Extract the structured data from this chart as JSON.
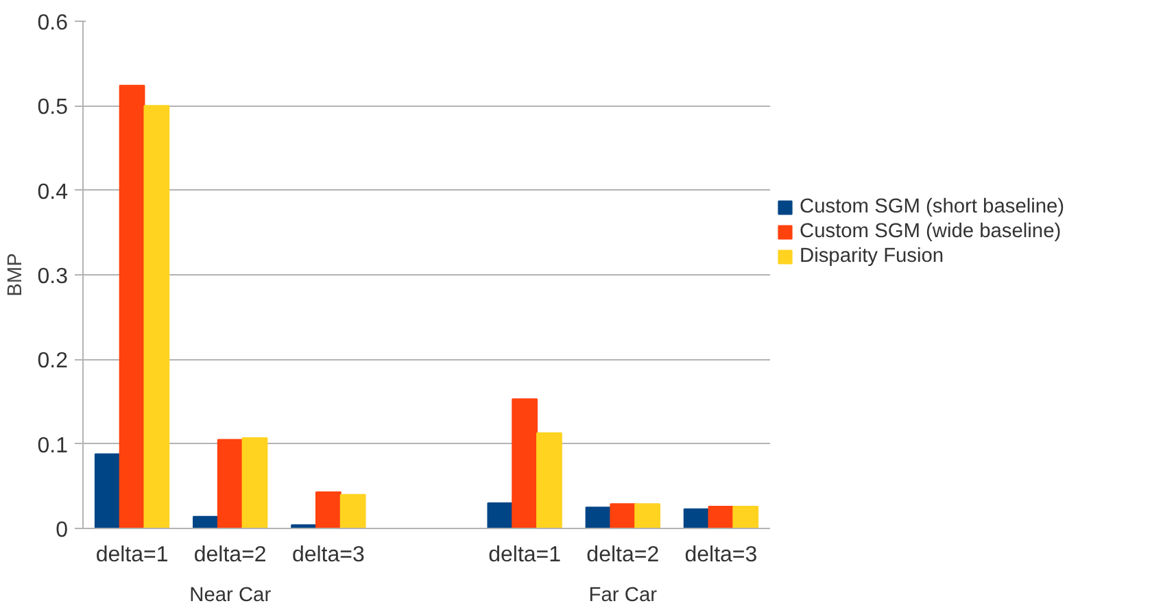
{
  "chart_data": {
    "type": "bar",
    "ylabel": "BMP",
    "categories": [
      "delta=1",
      "delta=2",
      "delta=3",
      null,
      "delta=1",
      "delta=2",
      "delta=3"
    ],
    "series": [
      {
        "name": "Custom SGM (short baseline)",
        "color": "#004586",
        "values": [
          0.088,
          0.014,
          0.004,
          null,
          0.03,
          0.025,
          0.023
        ]
      },
      {
        "name": "Custom SGM (wide baseline)",
        "color": "#ff420e",
        "values": [
          0.524,
          0.105,
          0.043,
          null,
          0.153,
          0.029,
          0.026
        ]
      },
      {
        "name": "Disparity Fusion",
        "color": "#ffd320",
        "values": [
          0.5,
          0.107,
          0.04,
          null,
          0.113,
          0.029,
          0.026
        ]
      }
    ],
    "annotations": [
      "Near Car",
      "Far Car"
    ],
    "ylim": [
      0,
      0.6
    ],
    "yticks": [
      0,
      0.1,
      0.2,
      0.3,
      0.4,
      0.5,
      0.6
    ],
    "grid": "y",
    "legend": "right"
  }
}
